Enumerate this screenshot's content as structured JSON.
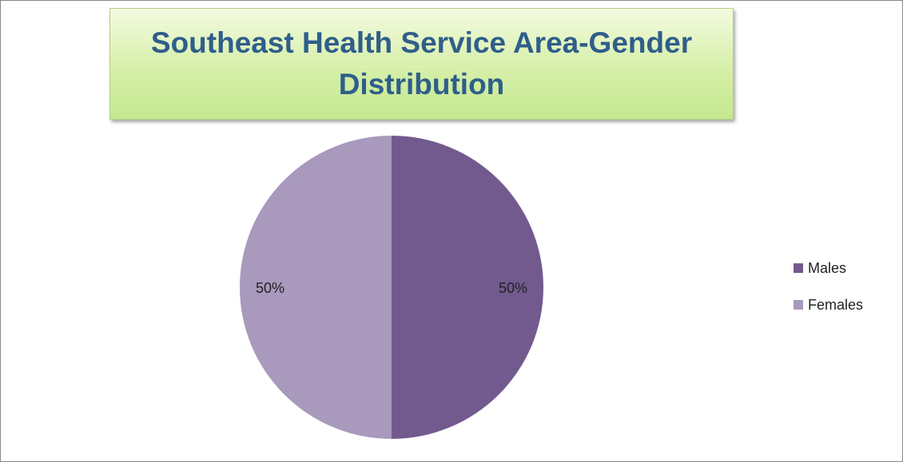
{
  "chart_data": {
    "type": "pie",
    "title": "Southeast Health Service Area-Gender Distribution",
    "categories": [
      "Males",
      "Females"
    ],
    "values": [
      50,
      50
    ],
    "value_labels": [
      "50%",
      "50%"
    ],
    "colors": [
      "#725a8f",
      "#a899bd"
    ],
    "legend": "right"
  }
}
